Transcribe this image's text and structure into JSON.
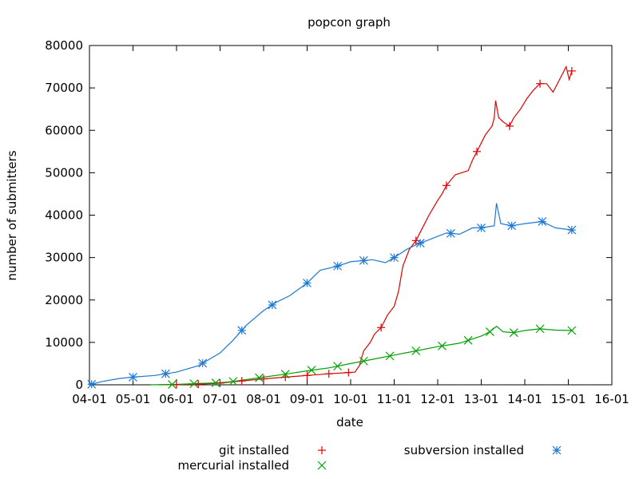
{
  "chart_data": {
    "type": "line",
    "title": "popcon graph",
    "xlabel": "date",
    "ylabel": "number of submitters",
    "x_ticks": [
      "04-01",
      "05-01",
      "06-01",
      "07-01",
      "08-01",
      "09-01",
      "10-01",
      "11-01",
      "12-01",
      "13-01",
      "14-01",
      "15-01",
      "16-01"
    ],
    "xlim": [
      "04-01",
      "16-01"
    ],
    "ylim": [
      0,
      80000
    ],
    "y_ticks": [
      0,
      10000,
      20000,
      30000,
      40000,
      50000,
      60000,
      70000,
      80000
    ],
    "grid": false,
    "legend_position": "bottom",
    "series": [
      {
        "name": "git installed",
        "color": "#e00000",
        "marker": "plus",
        "points": [
          [
            2005.6,
            0
          ],
          [
            2006.0,
            50
          ],
          [
            2006.5,
            150
          ],
          [
            2007.0,
            400
          ],
          [
            2007.5,
            900
          ],
          [
            2008.0,
            1400
          ],
          [
            2008.5,
            1800
          ],
          [
            2009.0,
            2200
          ],
          [
            2009.5,
            2600
          ],
          [
            2009.95,
            2900
          ],
          [
            2010.1,
            3000
          ],
          [
            2010.2,
            4500
          ],
          [
            2010.3,
            8000
          ],
          [
            2010.45,
            10000
          ],
          [
            2010.55,
            12000
          ],
          [
            2010.7,
            13500
          ],
          [
            2010.85,
            16500
          ],
          [
            2011.0,
            18500
          ],
          [
            2011.1,
            22000
          ],
          [
            2011.2,
            28000
          ],
          [
            2011.35,
            32000
          ],
          [
            2011.5,
            34000
          ],
          [
            2011.6,
            36000
          ],
          [
            2011.8,
            40000
          ],
          [
            2012.0,
            43500
          ],
          [
            2012.1,
            45000
          ],
          [
            2012.2,
            47000
          ],
          [
            2012.4,
            49500
          ],
          [
            2012.7,
            50500
          ],
          [
            2012.8,
            53000
          ],
          [
            2012.9,
            55000
          ],
          [
            2013.0,
            57000
          ],
          [
            2013.1,
            59000
          ],
          [
            2013.25,
            61000
          ],
          [
            2013.3,
            63000
          ],
          [
            2013.33,
            67000
          ],
          [
            2013.4,
            63000
          ],
          [
            2013.5,
            62000
          ],
          [
            2013.65,
            61000
          ],
          [
            2013.75,
            63000
          ],
          [
            2013.9,
            65000
          ],
          [
            2014.05,
            67500
          ],
          [
            2014.2,
            69500
          ],
          [
            2014.35,
            71000
          ],
          [
            2014.5,
            71000
          ],
          [
            2014.65,
            69000
          ],
          [
            2014.8,
            72000
          ],
          [
            2014.95,
            75000
          ],
          [
            2015.02,
            72000
          ],
          [
            2015.08,
            74000
          ]
        ],
        "markers_x": [
          2006.0,
          2006.5,
          2007.0,
          2007.5,
          2008.0,
          2008.5,
          2009.0,
          2009.5,
          2009.95,
          2010.7,
          2011.5,
          2012.2,
          2012.9,
          2013.65,
          2014.35,
          2015.08
        ]
      },
      {
        "name": "mercurial installed",
        "color": "#00a000",
        "marker": "cross",
        "points": [
          [
            2005.4,
            0
          ],
          [
            2006.0,
            100
          ],
          [
            2006.5,
            300
          ],
          [
            2007.0,
            500
          ],
          [
            2007.3,
            800
          ],
          [
            2007.8,
            1500
          ],
          [
            2008.0,
            1800
          ],
          [
            2008.5,
            2500
          ],
          [
            2009.0,
            3300
          ],
          [
            2009.5,
            4000
          ],
          [
            2010.0,
            5000
          ],
          [
            2010.5,
            6000
          ],
          [
            2011.0,
            7000
          ],
          [
            2011.5,
            8000
          ],
          [
            2012.0,
            9000
          ],
          [
            2012.5,
            9800
          ],
          [
            2013.0,
            11500
          ],
          [
            2013.2,
            12500
          ],
          [
            2013.35,
            13800
          ],
          [
            2013.5,
            12500
          ],
          [
            2013.75,
            12300
          ],
          [
            2014.0,
            12800
          ],
          [
            2014.35,
            13200
          ],
          [
            2014.7,
            12900
          ],
          [
            2015.08,
            12800
          ]
        ],
        "markers_x": [
          2005.9,
          2006.4,
          2006.9,
          2007.3,
          2007.9,
          2008.5,
          2009.1,
          2009.7,
          2010.3,
          2010.9,
          2011.5,
          2012.1,
          2012.7,
          2013.2,
          2013.75,
          2014.35,
          2015.08
        ]
      },
      {
        "name": "subversion installed",
        "color": "#1e78d2",
        "marker": "star",
        "points": [
          [
            2004.0,
            0
          ],
          [
            2004.3,
            800
          ],
          [
            2004.7,
            1500
          ],
          [
            2005.0,
            1800
          ],
          [
            2005.5,
            2200
          ],
          [
            2006.0,
            3000
          ],
          [
            2006.5,
            4500
          ],
          [
            2007.0,
            7500
          ],
          [
            2007.3,
            10500
          ],
          [
            2007.6,
            14000
          ],
          [
            2008.0,
            17500
          ],
          [
            2008.3,
            19500
          ],
          [
            2008.6,
            21000
          ],
          [
            2009.0,
            24000
          ],
          [
            2009.3,
            27000
          ],
          [
            2009.7,
            28000
          ],
          [
            2010.0,
            29000
          ],
          [
            2010.5,
            29500
          ],
          [
            2010.8,
            28800
          ],
          [
            2011.0,
            30000
          ],
          [
            2011.3,
            32000
          ],
          [
            2011.5,
            33000
          ],
          [
            2012.0,
            35000
          ],
          [
            2012.2,
            35800
          ],
          [
            2012.5,
            35500
          ],
          [
            2012.8,
            37000
          ],
          [
            2013.0,
            37000
          ],
          [
            2013.3,
            37500
          ],
          [
            2013.35,
            42800
          ],
          [
            2013.45,
            38000
          ],
          [
            2013.7,
            37500
          ],
          [
            2014.0,
            38000
          ],
          [
            2014.4,
            38500
          ],
          [
            2014.7,
            37000
          ],
          [
            2015.08,
            36500
          ]
        ],
        "markers_x": [
          2004.05,
          2005.0,
          2005.75,
          2006.6,
          2007.5,
          2008.2,
          2009.0,
          2009.7,
          2010.3,
          2011.0,
          2011.6,
          2012.3,
          2013.0,
          2013.7,
          2014.4,
          2015.08
        ]
      }
    ]
  }
}
